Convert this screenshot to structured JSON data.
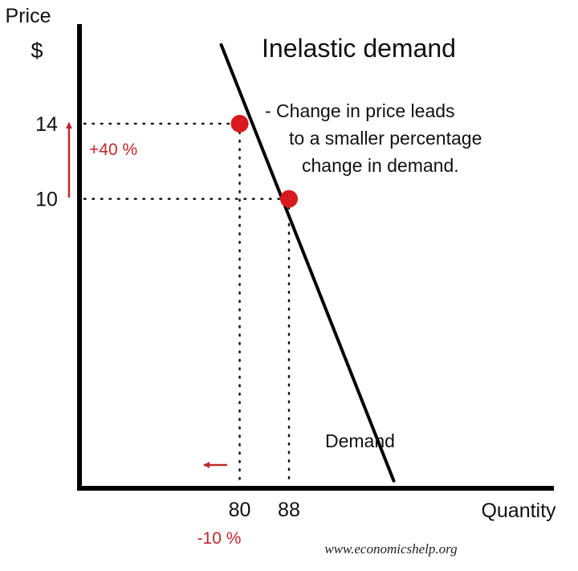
{
  "chart_data": {
    "type": "line",
    "title": "Inelastic demand",
    "annotation": [
      "- Change in price leads",
      "to a smaller percentage",
      "change in demand."
    ],
    "ylabel": [
      "Price",
      "$"
    ],
    "xlabel": "Quantity",
    "series": [
      {
        "name": "Demand",
        "points": [
          [
            77,
            18.2
          ],
          [
            105,
            -5
          ]
        ]
      }
    ],
    "highlight_points": [
      {
        "x": 80,
        "y": 14
      },
      {
        "x": 88,
        "y": 10
      }
    ],
    "ytick_labels": [
      {
        "value": 14,
        "label": "14"
      },
      {
        "value": 10,
        "label": "10"
      }
    ],
    "xtick_labels": [
      {
        "value": 80,
        "label": "80"
      },
      {
        "value": 88,
        "label": "88"
      }
    ],
    "price_change_label": "+40 %",
    "quantity_change_label": "-10 %",
    "xlim": [
      54,
      131
    ],
    "ylim": [
      -5.4,
      19.3
    ],
    "grid": false,
    "colors": {
      "axis": "#000000",
      "line": "#000000",
      "point": "#d8191f",
      "arrow": "#c0282b",
      "change_text": "#c0282b"
    }
  },
  "source": "www.economicshelp.org"
}
